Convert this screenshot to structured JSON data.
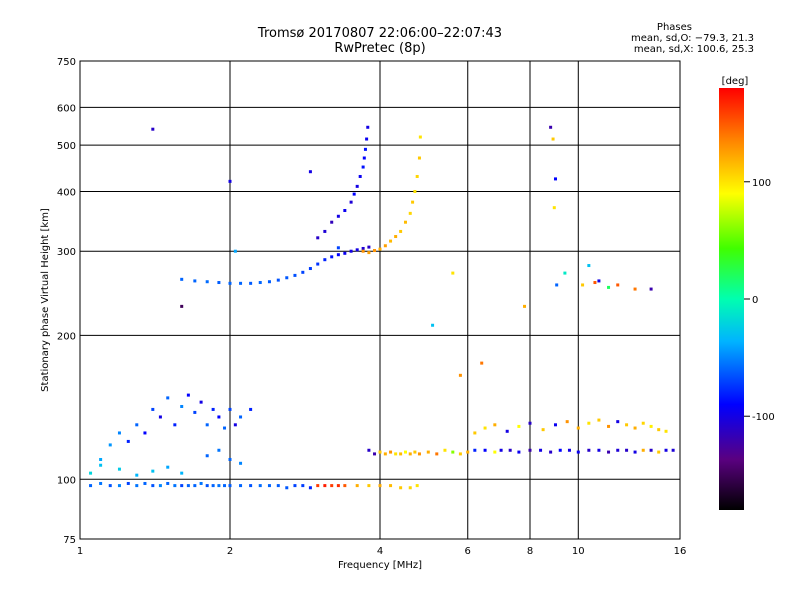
{
  "title": {
    "line1": "Tromsø 20170807 22:06:00–22:07:43",
    "line2": "RwPretec (8p)"
  },
  "phase_stats": {
    "header": "Phases",
    "o_line": "mean, sd,O: −79.3, 21.3",
    "x_line": "mean, sd,X: 100.6, 25.3"
  },
  "chart_data": {
    "type": "scatter",
    "xlabel": "Frequency [MHz]",
    "ylabel": "Stationary phase Virtual Height [km]",
    "xscale": "log",
    "yscale": "log",
    "xlim": [
      1,
      16
    ],
    "ylim": [
      75,
      750
    ],
    "xticks": [
      1,
      2,
      4,
      6,
      8,
      10,
      16
    ],
    "yticks": [
      75,
      100,
      200,
      300,
      400,
      500,
      600,
      750
    ],
    "grid": true,
    "colorbar": {
      "label": "[deg]",
      "ticks": [
        100,
        0,
        -100
      ],
      "range": [
        -180,
        180
      ],
      "colormap": "rainbow"
    },
    "series": [
      {
        "x": [
          1.05,
          1.1,
          1.15,
          1.2,
          1.25,
          1.3,
          1.35,
          1.4,
          1.45,
          1.5,
          1.55,
          1.6,
          1.65,
          1.7,
          1.75,
          1.8,
          1.85,
          1.9,
          1.95,
          2.0,
          2.1,
          2.2,
          2.3,
          2.4,
          2.5,
          2.6,
          2.7,
          2.8,
          2.9
        ],
        "y": [
          97,
          98,
          97,
          97,
          98,
          97,
          98,
          97,
          97,
          98,
          97,
          97,
          97,
          97,
          98,
          97,
          97,
          97,
          97,
          97,
          97,
          97,
          97,
          97,
          97,
          96,
          97,
          97,
          96
        ],
        "c": [
          -60,
          -55,
          -65,
          -50,
          -70,
          -55,
          -60,
          -65,
          -50,
          -60,
          -55,
          -70,
          -60,
          -60,
          -55,
          -65,
          -60,
          -55,
          -60,
          -62,
          -60,
          -65,
          -58,
          -60,
          -62,
          -64,
          -70,
          -72,
          -80
        ]
      },
      {
        "x": [
          3.0,
          3.1,
          3.2,
          3.3,
          3.4,
          3.6,
          3.8,
          4.0,
          4.2,
          4.4,
          4.6,
          4.75
        ],
        "y": [
          97,
          97,
          97,
          97,
          97,
          97,
          97,
          97,
          97,
          96,
          96,
          97
        ],
        "c": [
          160,
          170,
          160,
          165,
          150,
          120,
          110,
          120,
          115,
          110,
          105,
          100
        ]
      },
      {
        "x": [
          1.1,
          1.15,
          1.2,
          1.25,
          1.3,
          1.35,
          1.4,
          1.45,
          1.5,
          1.55,
          1.6,
          1.65,
          1.7,
          1.75,
          1.8,
          1.85,
          1.9,
          1.95,
          2.0,
          2.05,
          2.1,
          2.2
        ],
        "y": [
          110,
          118,
          125,
          120,
          130,
          125,
          140,
          135,
          148,
          130,
          142,
          150,
          138,
          145,
          130,
          140,
          135,
          128,
          140,
          130,
          135,
          140
        ],
        "c": [
          -40,
          -45,
          -50,
          -80,
          -60,
          -90,
          -70,
          -100,
          -60,
          -80,
          -50,
          -90,
          -70,
          -100,
          -60,
          -80,
          -90,
          -60,
          -70,
          -100,
          -60,
          -80
        ]
      },
      {
        "x": [
          1.05,
          1.1,
          1.2,
          1.3,
          1.4,
          1.5,
          1.6,
          1.8,
          1.9,
          2.0,
          2.1
        ],
        "y": [
          103,
          107,
          105,
          102,
          104,
          106,
          103,
          112,
          115,
          110,
          108
        ],
        "c": [
          -20,
          -30,
          -25,
          -35,
          -30,
          -40,
          -35,
          -60,
          -55,
          -60,
          -50
        ]
      },
      {
        "x": [
          1.6,
          1.7,
          1.8,
          1.9,
          2.0,
          2.1,
          2.2,
          2.3,
          2.4,
          2.5,
          2.6,
          2.7,
          2.8,
          2.9,
          3.0,
          3.1,
          3.2,
          3.3,
          3.4,
          3.5,
          3.6,
          3.7,
          3.8
        ],
        "y": [
          262,
          260,
          259,
          258,
          257,
          257,
          257,
          258,
          259,
          261,
          264,
          267,
          271,
          276,
          282,
          288,
          292,
          295,
          297,
          300,
          302,
          304,
          306
        ],
        "c": [
          -60,
          -60,
          -58,
          -62,
          -60,
          -60,
          -63,
          -60,
          -62,
          -65,
          -64,
          -66,
          -70,
          -72,
          -75,
          -80,
          -85,
          -90,
          -95,
          -100,
          -100,
          -105,
          -110
        ]
      },
      {
        "x": [
          3.0,
          3.1,
          3.2,
          3.3,
          3.4,
          3.5,
          3.55,
          3.6,
          3.65,
          3.7,
          3.72,
          3.74,
          3.76,
          3.78
        ],
        "y": [
          320,
          330,
          345,
          355,
          365,
          380,
          395,
          410,
          430,
          450,
          470,
          490,
          515,
          545
        ],
        "c": [
          -110,
          -105,
          -115,
          -100,
          -95,
          -105,
          -90,
          -100,
          -95,
          -85,
          -90,
          -85,
          -95,
          -100
        ]
      },
      {
        "x": [
          3.7,
          3.8,
          3.9,
          4.0,
          4.1,
          4.2,
          4.3,
          4.4,
          4.5,
          4.6,
          4.65,
          4.7,
          4.75,
          4.8,
          4.82
        ],
        "y": [
          300,
          298,
          301,
          303,
          308,
          315,
          322,
          330,
          345,
          360,
          380,
          400,
          430,
          470,
          520
        ],
        "c": [
          130,
          125,
          130,
          120,
          125,
          115,
          120,
          110,
          115,
          105,
          110,
          100,
          105,
          110,
          100
        ]
      },
      {
        "x": [
          3.8,
          3.9,
          4.0,
          4.1,
          4.2,
          4.3,
          4.4,
          4.5,
          4.6,
          4.7,
          4.8,
          5.0,
          5.2,
          5.4,
          5.6,
          5.8,
          6.0
        ],
        "y": [
          115,
          113,
          114,
          113,
          114,
          113,
          113,
          114,
          113,
          114,
          113,
          114,
          113,
          115,
          114,
          113,
          114
        ],
        "c": [
          -110,
          -120,
          110,
          120,
          130,
          100,
          115,
          90,
          120,
          110,
          130,
          120,
          140,
          100,
          60,
          110,
          120
        ]
      },
      {
        "x": [
          6.2,
          6.5,
          6.8,
          7.0,
          7.3,
          7.6,
          8.0,
          8.4,
          8.8,
          9.2,
          9.6,
          10.0,
          10.5,
          11.0,
          11.5,
          12.0,
          12.5,
          13.0,
          13.5,
          14.0,
          14.5,
          15.0,
          15.5
        ],
        "y": [
          115,
          115,
          114,
          115,
          115,
          114,
          115,
          115,
          114,
          115,
          115,
          114,
          115,
          115,
          114,
          115,
          115,
          114,
          115,
          115,
          114,
          115,
          115
        ],
        "c": [
          -80,
          -90,
          90,
          -100,
          -110,
          -95,
          -120,
          -100,
          -110,
          -90,
          -100,
          -95,
          -110,
          -100,
          -120,
          -105,
          -110,
          -100,
          120,
          -110,
          110,
          -100,
          -105
        ]
      },
      {
        "x": [
          6.2,
          6.5,
          6.8,
          7.2,
          7.6,
          8.0,
          8.5,
          9.0,
          9.5,
          10.0,
          10.5,
          11.0,
          11.5,
          12.0,
          12.5,
          13.0,
          13.5,
          14.0,
          14.5,
          15.0
        ],
        "y": [
          125,
          128,
          130,
          126,
          129,
          131,
          127,
          130,
          132,
          128,
          131,
          133,
          129,
          132,
          130,
          128,
          131,
          129,
          127,
          126
        ],
        "c": [
          110,
          100,
          120,
          -100,
          90,
          -110,
          110,
          -95,
          130,
          120,
          100,
          110,
          130,
          -100,
          110,
          120,
          105,
          95,
          110,
          100
        ]
      },
      {
        "x": [
          1.4,
          1.6,
          2.0,
          2.05,
          2.9,
          3.3,
          5.1,
          5.6,
          5.8,
          6.4,
          7.8,
          8.8,
          8.9,
          8.95,
          9.0,
          9.05,
          9.4,
          10.5,
          11.0,
          12.0,
          13.0,
          14.0,
          10.2,
          10.8,
          11.5
        ],
        "y": [
          540,
          230,
          420,
          300,
          440,
          305,
          210,
          270,
          165,
          175,
          230,
          545,
          515,
          370,
          425,
          255,
          270,
          280,
          260,
          255,
          250,
          250,
          255,
          258,
          252
        ],
        "c": [
          -110,
          -150,
          -100,
          -40,
          -100,
          -70,
          -30,
          100,
          130,
          140,
          120,
          -120,
          110,
          100,
          -90,
          -60,
          -10,
          -30,
          -100,
          150,
          140,
          -120,
          110,
          150,
          20
        ]
      }
    ]
  }
}
